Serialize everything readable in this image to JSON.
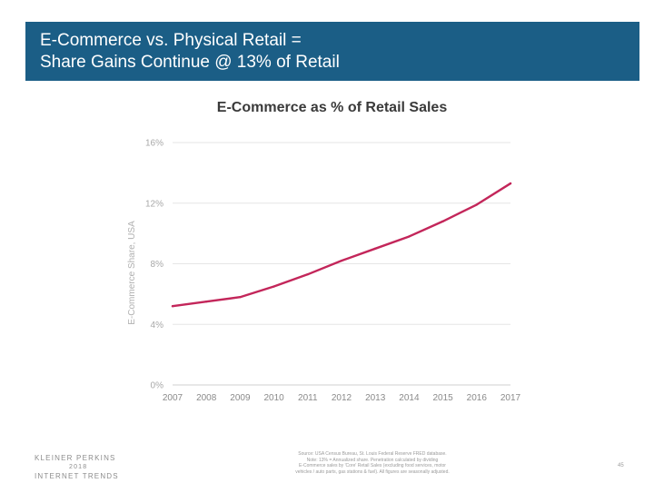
{
  "slide": {
    "title_line1": "E-Commerce vs. Physical Retail =",
    "title_line2": "Share Gains Continue @ 13% of Retail",
    "title_bg": "#1b5e86"
  },
  "chart_data": {
    "type": "line",
    "title": "E-Commerce as % of Retail Sales",
    "xlabel": "",
    "ylabel": "E-Commerce Share, USA",
    "x": [
      "2007",
      "2008",
      "2009",
      "2010",
      "2011",
      "2012",
      "2013",
      "2014",
      "2015",
      "2016",
      "2017"
    ],
    "series": [
      {
        "values": [
          5.2,
          5.5,
          5.8,
          6.5,
          7.3,
          8.2,
          9.0,
          9.8,
          10.8,
          11.9,
          13.3
        ],
        "color": "#c3265a"
      }
    ],
    "ylim": [
      0,
      16
    ],
    "yticks": [
      0,
      4,
      8,
      12,
      16
    ],
    "ytick_labels": [
      "0%",
      "4%",
      "8%",
      "12%",
      "16%"
    ],
    "grid": true
  },
  "footer": {
    "brand_line1": "KLEINER PERKINS",
    "brand_line2": "2018",
    "brand_line3": "INTERNET TRENDS",
    "source_line1": "Source: USA Census Bureau, St. Louis Federal Reserve FRED database.",
    "source_line2": "Note: 13% = Annualized share. Penetration calculated by dividing",
    "source_line3": "E-Commerce sales by 'Core' Retail Sales (excluding food services, motor",
    "source_line4": "vehicles / auto parts, gas stations & fuel). All figures are seasonally adjusted.",
    "page_number": "45"
  }
}
